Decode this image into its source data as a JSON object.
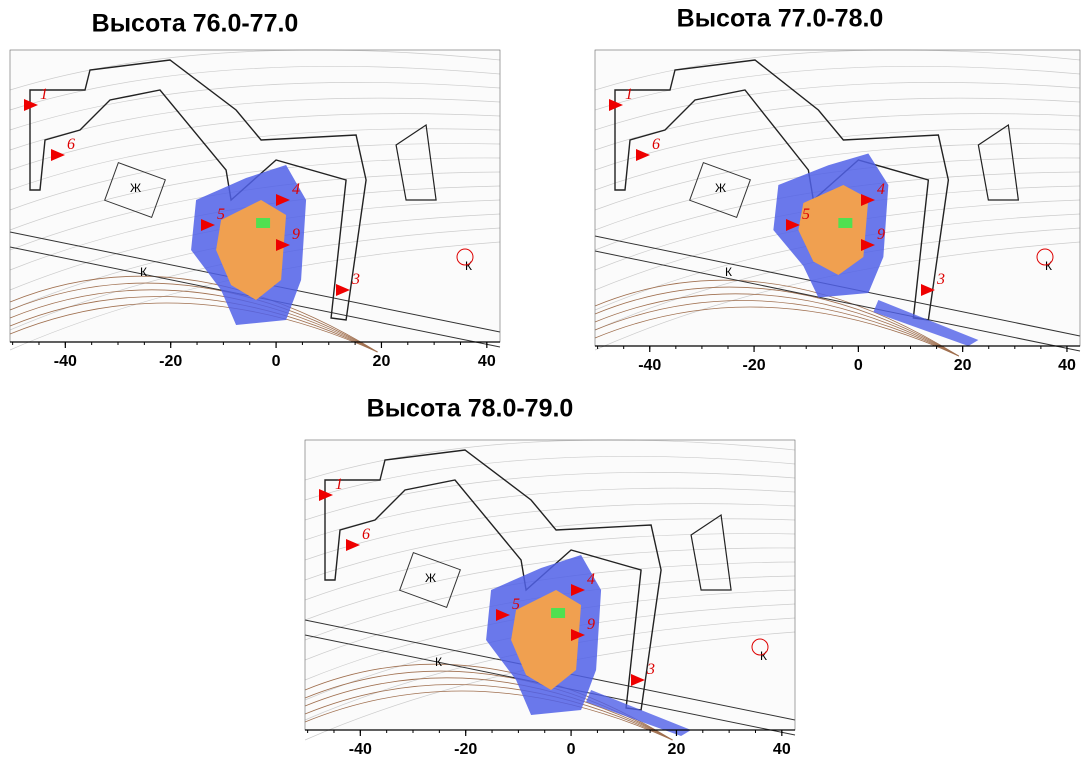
{
  "chart_data": [
    {
      "type": "map",
      "title": "Высота 76.0-77.0",
      "xlim": [
        -50.5,
        42.5
      ],
      "xticks": [
        -40,
        -20,
        0,
        20,
        40
      ]
    },
    {
      "type": "map",
      "title": "Высота 77.0-78.0",
      "xlim": [
        -50.5,
        42.5
      ],
      "xticks": [
        -40,
        -20,
        0,
        20,
        40
      ]
    },
    {
      "type": "map",
      "title": "Высота 78.0-79.0",
      "xlim": [
        -50.5,
        42.5
      ],
      "xticks": [
        -40,
        -20,
        0,
        20,
        40
      ]
    }
  ],
  "map_labels": {
    "markers": [
      "1",
      "6",
      "5",
      "4",
      "9",
      "3"
    ],
    "building": "Ж",
    "road": "К"
  }
}
